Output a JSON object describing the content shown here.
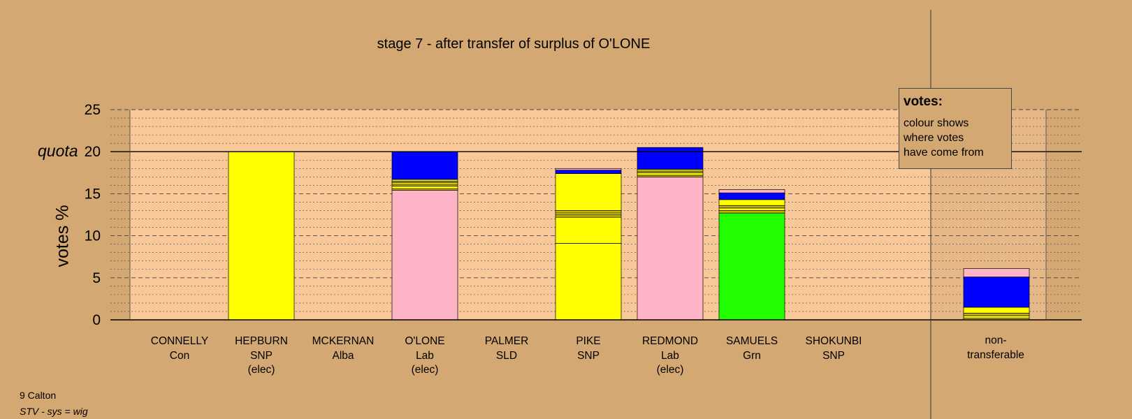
{
  "chart_data": {
    "type": "bar",
    "stacked": true,
    "title": "stage 7 - after transfer of surplus of O'LONE",
    "ylabel": "votes %",
    "ylim": [
      0,
      25
    ],
    "yticks": [
      0,
      5,
      10,
      15,
      20,
      25
    ],
    "quota": {
      "label": "quota",
      "value": 20
    },
    "grid": "dotted minor every 1, dashed major every 5",
    "legend": {
      "title": "votes:",
      "lines": [
        "colour shows",
        "where votes",
        "have come from"
      ],
      "placement": "top-right"
    },
    "candidates": [
      {
        "name": "CONNELLY",
        "party": "Con",
        "status": "",
        "segments": []
      },
      {
        "name": "HEPBURN",
        "party": "SNP",
        "status": "(elec)",
        "segments": [
          {
            "value": 20.0,
            "color": "#ffff00"
          }
        ]
      },
      {
        "name": "MCKERNAN",
        "party": "Alba",
        "status": "",
        "segments": []
      },
      {
        "name": "O'LONE",
        "party": "Lab",
        "status": "(elec)",
        "segments": [
          {
            "value": 15.4,
            "color": "#ffb3c6"
          },
          {
            "value": 0.2,
            "color": "#c8b400"
          },
          {
            "value": 0.3,
            "color": "#ffff00"
          },
          {
            "value": 0.2,
            "color": "#c8b400"
          },
          {
            "value": 0.2,
            "color": "#ffff00"
          },
          {
            "value": 0.2,
            "color": "#c8b400"
          },
          {
            "value": 0.2,
            "color": "#ffff00"
          },
          {
            "value": 3.3,
            "color": "#0000ff"
          }
        ]
      },
      {
        "name": "PALMER",
        "party": "SLD",
        "status": "",
        "segments": []
      },
      {
        "name": "PIKE",
        "party": "SNP",
        "status": "",
        "segments": [
          {
            "value": 9.1,
            "color": "#ffff00"
          },
          {
            "value": 3.1,
            "color": "#ffff00"
          },
          {
            "value": 0.3,
            "color": "#c8b400"
          },
          {
            "value": 0.2,
            "color": "#ffff00"
          },
          {
            "value": 0.3,
            "color": "#c8b400"
          },
          {
            "value": 4.4,
            "color": "#ffff00"
          },
          {
            "value": 0.4,
            "color": "#0000ff"
          },
          {
            "value": 0.2,
            "color": "#ffb3c6"
          }
        ]
      },
      {
        "name": "REDMOND",
        "party": "Lab",
        "status": "(elec)",
        "segments": [
          {
            "value": 17.0,
            "color": "#ffb3c6"
          },
          {
            "value": 0.2,
            "color": "#c8b400"
          },
          {
            "value": 0.3,
            "color": "#ffff00"
          },
          {
            "value": 0.2,
            "color": "#c8b400"
          },
          {
            "value": 0.2,
            "color": "#ffff00"
          },
          {
            "value": 2.6,
            "color": "#0000ff"
          }
        ]
      },
      {
        "name": "SAMUELS",
        "party": "Grn",
        "status": "",
        "segments": [
          {
            "value": 12.7,
            "color": "#22ff00"
          },
          {
            "value": 0.3,
            "color": "#c8b400"
          },
          {
            "value": 0.3,
            "color": "#ffff00"
          },
          {
            "value": 0.3,
            "color": "#c8b400"
          },
          {
            "value": 0.7,
            "color": "#ffff00"
          },
          {
            "value": 0.8,
            "color": "#0000ff"
          },
          {
            "value": 0.4,
            "color": "#ffb3c6"
          }
        ]
      },
      {
        "name": "SHOKUNBI",
        "party": "SNP",
        "status": "",
        "segments": []
      }
    ],
    "non_transferable": {
      "label_lines": [
        "non-",
        "transferable"
      ],
      "segments": [
        {
          "value": 0.2,
          "color": "#c8b400"
        },
        {
          "value": 0.3,
          "color": "#ffff00"
        },
        {
          "value": 0.3,
          "color": "#c8b400"
        },
        {
          "value": 0.7,
          "color": "#ffff00"
        },
        {
          "value": 3.6,
          "color": "#0000ff"
        },
        {
          "value": 1.0,
          "color": "#ffb3c6"
        }
      ]
    }
  },
  "footer": {
    "ward": "9 Calton",
    "system": "STV - sys = wig"
  }
}
